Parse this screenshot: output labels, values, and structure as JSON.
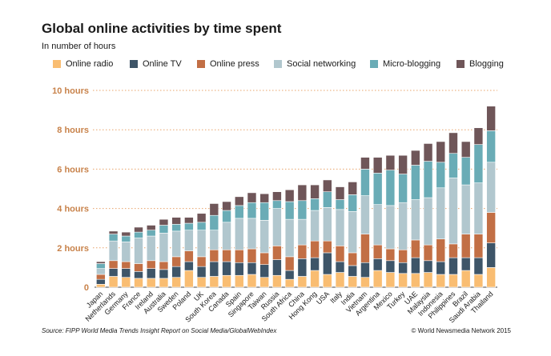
{
  "header": {
    "title": "Global online activities by time spent",
    "subtitle": "In number of hours"
  },
  "footer": {
    "source": "Source: FIPP World Media Trends Insight Report on Social Media/GlobalWebIndex",
    "copyright": "© World Newsmedia Network 2015"
  },
  "colors": {
    "tick_label": "#c8824a",
    "grid": "#e8a36a"
  },
  "chart_data": {
    "type": "bar",
    "stacked": true,
    "categories": [
      "Japan",
      "Netherlands",
      "Germany",
      "France",
      "Ireland",
      "Australia",
      "Sweden",
      "Poland",
      "UK",
      "South Korea",
      "Canada",
      "Spain",
      "Singapore",
      "Taiwan",
      "Russia",
      "South Africa",
      "China",
      "Hong Kong",
      "USA",
      "Italy",
      "India",
      "Vietnam",
      "Argentina",
      "Mexico",
      "Turkey",
      "UAE",
      "Malaysia",
      "Indonesia",
      "Philippines",
      "Brazil",
      "Saudi Arabia",
      "Thailand"
    ],
    "series": [
      {
        "name": "Online radio",
        "color": "#f9bd72",
        "values": [
          0.15,
          0.55,
          0.5,
          0.45,
          0.45,
          0.45,
          0.5,
          0.85,
          0.5,
          0.55,
          0.6,
          0.6,
          0.65,
          0.5,
          0.6,
          0.4,
          0.55,
          0.85,
          0.65,
          0.75,
          0.55,
          0.5,
          0.85,
          0.75,
          0.7,
          0.7,
          0.75,
          0.65,
          0.65,
          0.85,
          0.65,
          1.0
        ]
      },
      {
        "name": "Online TV",
        "color": "#3e5568",
        "values": [
          0.25,
          0.4,
          0.45,
          0.35,
          0.5,
          0.45,
          0.55,
          0.45,
          0.55,
          0.75,
          0.7,
          0.65,
          0.6,
          0.65,
          0.8,
          0.45,
          0.9,
          0.65,
          1.1,
          0.55,
          0.55,
          0.75,
          0.6,
          0.6,
          0.55,
          0.8,
          0.6,
          0.65,
          0.85,
          0.65,
          0.85,
          1.25
        ]
      },
      {
        "name": "Online press",
        "color": "#c26f45",
        "values": [
          0.25,
          0.4,
          0.35,
          0.4,
          0.4,
          0.4,
          0.5,
          0.55,
          0.5,
          0.6,
          0.6,
          0.65,
          0.7,
          0.6,
          0.7,
          0.7,
          0.7,
          0.85,
          0.6,
          0.8,
          0.65,
          1.45,
          0.7,
          0.6,
          0.65,
          0.9,
          0.8,
          1.15,
          0.7,
          1.2,
          1.2,
          1.55
        ]
      },
      {
        "name": "Social networking",
        "color": "#b1c7ce",
        "values": [
          0.3,
          1.0,
          1.0,
          1.3,
          1.25,
          1.45,
          1.3,
          1.05,
          1.35,
          1.0,
          1.4,
          1.6,
          1.55,
          1.65,
          1.9,
          1.9,
          1.3,
          1.55,
          1.7,
          1.85,
          2.1,
          1.95,
          2.05,
          2.2,
          2.4,
          2.05,
          2.4,
          2.6,
          3.35,
          2.5,
          2.6,
          2.55
        ]
      },
      {
        "name": "Micro-blogging",
        "color": "#6aacb6",
        "values": [
          0.25,
          0.35,
          0.3,
          0.3,
          0.3,
          0.4,
          0.35,
          0.35,
          0.4,
          0.75,
          0.6,
          0.65,
          0.8,
          0.9,
          0.4,
          0.9,
          0.95,
          0.6,
          0.8,
          0.5,
          0.85,
          1.35,
          1.6,
          1.8,
          1.45,
          1.75,
          1.85,
          1.3,
          1.25,
          1.4,
          1.95,
          1.6
        ]
      },
      {
        "name": "Blogging",
        "color": "#6f5659",
        "values": [
          0.1,
          0.15,
          0.2,
          0.25,
          0.25,
          0.3,
          0.35,
          0.3,
          0.45,
          0.6,
          0.45,
          0.45,
          0.5,
          0.45,
          0.45,
          0.6,
          0.8,
          0.7,
          0.6,
          0.65,
          0.65,
          0.6,
          0.8,
          0.75,
          0.95,
          0.75,
          0.9,
          1.05,
          1.05,
          0.8,
          0.85,
          1.25
        ]
      }
    ],
    "y_ticks": [
      "0",
      "2 hours",
      "4 hours",
      "6 hours",
      "8 hours",
      "10 hours"
    ],
    "y_tick_values": [
      0,
      2,
      4,
      6,
      8,
      10
    ],
    "ylim": [
      0,
      10
    ],
    "legend_position": "top",
    "grid": true
  }
}
